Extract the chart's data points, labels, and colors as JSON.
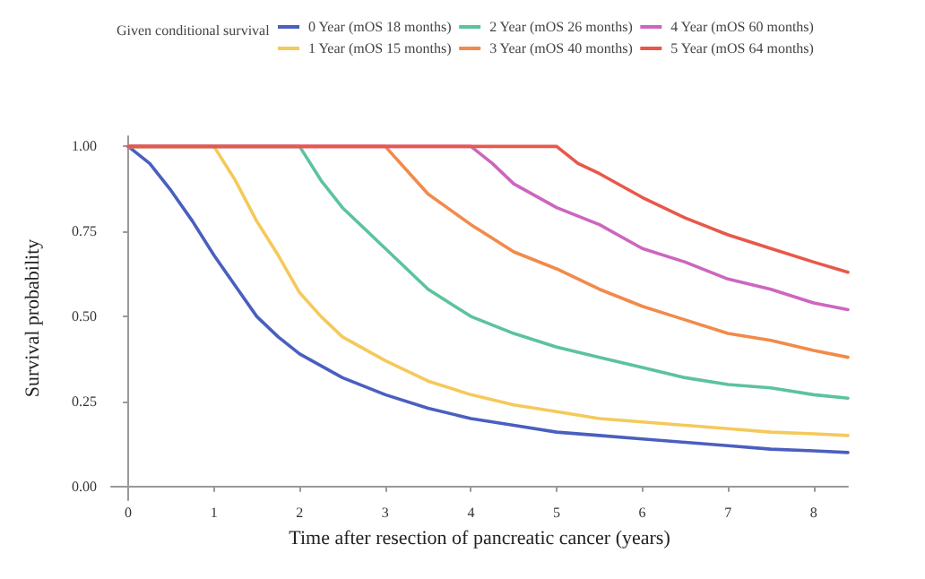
{
  "chart_data": {
    "type": "line",
    "xlabel": "Time after resection of pancreatic cancer (years)",
    "ylabel": "Survival probability",
    "legend_title": "Given conditional survival",
    "legend": "top",
    "grid": false,
    "marker": "none",
    "line_style": "solid",
    "xlim": [
      -0.2,
      8.4
    ],
    "xticks": [
      0,
      1,
      2,
      3,
      4,
      5,
      6,
      7,
      8
    ],
    "ylim": [
      -0.04,
      1.03
    ],
    "yticks": [
      {
        "value": 0,
        "label": "0.00"
      },
      {
        "value": 0.25,
        "label": "0.25"
      },
      {
        "value": 0.5,
        "label": "0.50"
      },
      {
        "value": 0.75,
        "label": "0.75"
      },
      {
        "value": 1,
        "label": "1.00"
      }
    ],
    "series": [
      {
        "name": "0 Year (mOS 18 months)",
        "color": "#4a5fbf",
        "x": [
          0,
          0.25,
          0.5,
          0.75,
          1,
          1.25,
          1.5,
          1.75,
          2,
          2.5,
          3,
          3.5,
          4,
          4.5,
          5,
          5.5,
          6,
          6.5,
          7,
          7.5,
          8,
          8.4
        ],
        "values": [
          1,
          0.95,
          0.87,
          0.78,
          0.68,
          0.59,
          0.5,
          0.44,
          0.39,
          0.32,
          0.27,
          0.23,
          0.2,
          0.18,
          0.16,
          0.15,
          0.14,
          0.13,
          0.12,
          0.11,
          0.105,
          0.1
        ]
      },
      {
        "name": "1 Year (mOS 15 months)",
        "color": "#f5c95a",
        "x": [
          0,
          1,
          1.25,
          1.5,
          1.75,
          2,
          2.25,
          2.5,
          3,
          3.5,
          4,
          4.5,
          5,
          5.5,
          6,
          6.5,
          7,
          7.5,
          8,
          8.4
        ],
        "values": [
          1,
          1,
          0.9,
          0.78,
          0.68,
          0.57,
          0.5,
          0.44,
          0.37,
          0.31,
          0.27,
          0.24,
          0.22,
          0.2,
          0.19,
          0.18,
          0.17,
          0.16,
          0.155,
          0.15
        ]
      },
      {
        "name": "2 Year (mOS 26 months)",
        "color": "#5cc39c",
        "x": [
          0,
          2,
          2.25,
          2.5,
          3,
          3.5,
          4,
          4.5,
          5,
          5.5,
          6,
          6.5,
          7,
          7.5,
          8,
          8.4
        ],
        "values": [
          1,
          1,
          0.9,
          0.82,
          0.7,
          0.58,
          0.5,
          0.45,
          0.41,
          0.38,
          0.35,
          0.32,
          0.3,
          0.29,
          0.27,
          0.26
        ]
      },
      {
        "name": "3 Year (mOS 40 months)",
        "color": "#f28a4a",
        "x": [
          0,
          3,
          3.25,
          3.5,
          4,
          4.5,
          5,
          5.5,
          6,
          6.5,
          7,
          7.5,
          8,
          8.4
        ],
        "values": [
          1,
          1,
          0.93,
          0.86,
          0.77,
          0.69,
          0.64,
          0.58,
          0.53,
          0.49,
          0.45,
          0.43,
          0.4,
          0.38
        ]
      },
      {
        "name": "4 Year (mOS 60 months)",
        "color": "#cc66c0",
        "x": [
          0,
          4,
          4.25,
          4.5,
          5,
          5.5,
          6,
          6.5,
          7,
          7.5,
          8,
          8.4
        ],
        "values": [
          1,
          1,
          0.95,
          0.89,
          0.82,
          0.77,
          0.7,
          0.66,
          0.61,
          0.58,
          0.54,
          0.52
        ]
      },
      {
        "name": "5 Year (mOS 64 months)",
        "color": "#e8584a",
        "x": [
          0,
          5,
          5.25,
          5.5,
          6,
          6.5,
          7,
          7.5,
          8,
          8.4
        ],
        "values": [
          1,
          1,
          0.95,
          0.92,
          0.85,
          0.79,
          0.74,
          0.7,
          0.66,
          0.63
        ]
      }
    ]
  }
}
